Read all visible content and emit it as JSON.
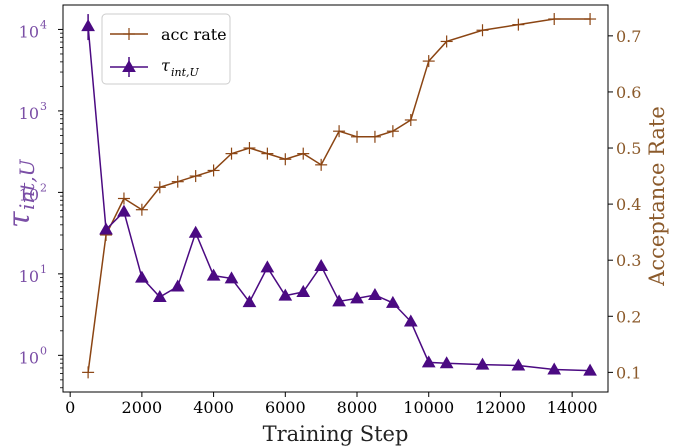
{
  "chart_data": {
    "type": "line",
    "xlabel": "Training Step",
    "x_ticks": [
      0,
      2000,
      4000,
      6000,
      8000,
      10000,
      12000,
      14000
    ],
    "xlim": [
      -200,
      15000
    ],
    "left_axis": {
      "label_main": "τ",
      "label_sub": "int,U",
      "scale": "log",
      "ylim_exp": [
        -0.45,
        4.3
      ],
      "tick_exponents": [
        0,
        1,
        2,
        3,
        4
      ],
      "tick_base": "10",
      "color": "#7b4fa6"
    },
    "right_axis": {
      "label": "Acceptance Rate",
      "scale": "linear",
      "ylim": [
        0.065,
        0.755
      ],
      "ticks": [
        0.1,
        0.2,
        0.3,
        0.4,
        0.5,
        0.6,
        0.7
      ],
      "color": "#8b5a2b"
    },
    "legend_placement": "upper-left",
    "series": [
      {
        "name": "acc rate",
        "axis": "right",
        "marker": "plus",
        "color": "#8b4513",
        "x": [
          500,
          1000,
          1500,
          2000,
          2500,
          3000,
          3500,
          4000,
          4500,
          5000,
          5500,
          6000,
          6500,
          7000,
          7500,
          8000,
          8500,
          9000,
          9500,
          10000,
          10500,
          11500,
          12500,
          13500,
          14500
        ],
        "y": [
          0.1,
          0.345,
          0.41,
          0.39,
          0.43,
          0.44,
          0.45,
          0.46,
          0.49,
          0.5,
          0.49,
          0.48,
          0.49,
          0.47,
          0.53,
          0.52,
          0.52,
          0.53,
          0.55,
          0.655,
          0.69,
          0.71,
          0.72,
          0.73,
          0.73
        ]
      },
      {
        "name_main": "τ",
        "name_sub": "int,U",
        "axis": "left",
        "marker": "triangle",
        "color": "#4b0a82",
        "x": [
          500,
          1000,
          1500,
          2000,
          2500,
          3000,
          3500,
          4000,
          4500,
          5000,
          5500,
          6000,
          6500,
          7000,
          7500,
          8000,
          8500,
          9000,
          9500,
          10000,
          10500,
          11500,
          12500,
          13500,
          14500
        ],
        "y": [
          11000,
          35,
          58,
          9,
          5.2,
          7,
          32,
          9.5,
          8.8,
          4.5,
          12,
          5.4,
          6,
          12.5,
          4.6,
          5,
          5.5,
          4.4,
          2.6,
          0.82,
          0.8,
          0.77,
          0.75,
          0.67,
          0.65
        ]
      }
    ]
  }
}
